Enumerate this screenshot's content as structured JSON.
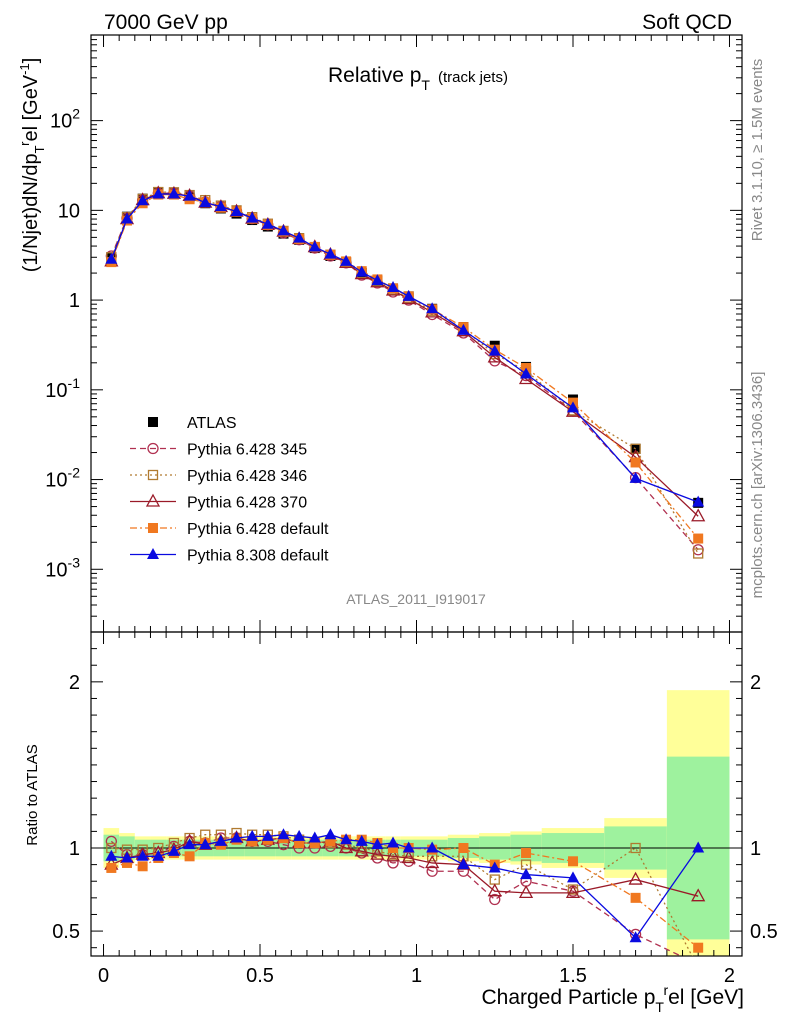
{
  "header": {
    "left": "7000 GeV pp",
    "right": "Soft QCD"
  },
  "side_texts": {
    "top": "Rivet 3.1.10, ≥ 1.5M events",
    "bottom": "mcplots.cern.ch [arXiv:1306.3436]"
  },
  "watermark": "ATLAS_2011_I919017",
  "chart_data": [
    {
      "type": "scatter",
      "title_main": "Relative p",
      "title_sub": "T",
      "title_suffix": "(track jets)",
      "ylabel": "(1/Njet)dN/dp",
      "ylabel_sub": "T",
      "ylabel_sup": "r",
      "ylabel_tail": "el [GeV",
      "ylabel_unit_sup": "-1",
      "ylabel_close": "]",
      "yscale": "log",
      "xlim": [
        -0.04,
        2.04
      ],
      "ylim": [
        0.0002,
        900
      ],
      "y_tick_labels": [
        {
          "v": 0.001,
          "base": "10",
          "exp": "-3"
        },
        {
          "v": 0.01,
          "base": "10",
          "exp": "-2"
        },
        {
          "v": 0.1,
          "base": "10",
          "exp": "-1"
        },
        {
          "v": 1,
          "base": "1",
          "exp": ""
        },
        {
          "v": 10,
          "base": "10",
          "exp": ""
        },
        {
          "v": 100,
          "base": "10",
          "exp": "2"
        }
      ],
      "legend_position": "lower-left",
      "x": [
        0.025,
        0.075,
        0.125,
        0.175,
        0.225,
        0.275,
        0.325,
        0.375,
        0.425,
        0.475,
        0.525,
        0.575,
        0.625,
        0.675,
        0.725,
        0.775,
        0.825,
        0.875,
        0.925,
        0.975,
        1.05,
        1.15,
        1.25,
        1.35,
        1.5,
        1.7,
        1.9
      ],
      "series": [
        {
          "name": "ATLAS",
          "color": "#000000",
          "marker": "square-filled",
          "line": "none",
          "values": [
            3.0,
            8.5,
            13.5,
            16.0,
            15.5,
            14.0,
            12.0,
            10.5,
            9.2,
            7.8,
            6.6,
            5.5,
            4.7,
            3.8,
            3.1,
            2.6,
            2.0,
            1.65,
            1.35,
            1.1,
            0.8,
            0.5,
            0.31,
            0.18,
            0.078,
            0.022,
            0.0055
          ]
        },
        {
          "name": "Pythia 6.428 345",
          "color": "#b03050",
          "marker": "circle-open",
          "line": "dashed",
          "values": [
            3.1,
            8.2,
            13.0,
            15.5,
            15.6,
            14.6,
            12.4,
            11.1,
            9.8,
            8.1,
            6.9,
            5.6,
            4.7,
            3.8,
            3.1,
            2.6,
            1.9,
            1.55,
            1.23,
            1.0,
            0.69,
            0.43,
            0.21,
            0.144,
            0.058,
            0.0105,
            0.00165
          ]
        },
        {
          "name": "Pythia 6.428 346",
          "color": "#b07a30",
          "marker": "square-open",
          "line": "dotted",
          "values": [
            3.0,
            8.4,
            13.4,
            16.0,
            15.9,
            14.8,
            13.0,
            11.3,
            10.0,
            8.4,
            7.1,
            5.9,
            4.9,
            3.9,
            3.2,
            2.65,
            2.0,
            1.62,
            1.3,
            1.05,
            0.76,
            0.475,
            0.25,
            0.163,
            0.059,
            0.022,
            0.0015
          ]
        },
        {
          "name": "Pythia 6.428 370",
          "color": "#9a1a28",
          "marker": "triangle-open",
          "line": "solid",
          "values": [
            2.7,
            8.0,
            13.0,
            15.5,
            15.3,
            14.5,
            12.2,
            10.9,
            9.7,
            8.1,
            6.9,
            5.8,
            4.8,
            3.9,
            3.2,
            2.6,
            1.95,
            1.58,
            1.28,
            1.03,
            0.73,
            0.45,
            0.23,
            0.132,
            0.057,
            0.0178,
            0.0039
          ]
        },
        {
          "name": "Pythia 6.428 default",
          "color": "#f07820",
          "marker": "square-filled",
          "line": "dashdot",
          "values": [
            2.65,
            7.7,
            12.0,
            15.0,
            15.0,
            13.3,
            12.3,
            10.7,
            9.7,
            8.1,
            6.9,
            5.8,
            4.8,
            3.9,
            3.2,
            2.7,
            2.1,
            1.7,
            1.35,
            1.1,
            0.79,
            0.5,
            0.28,
            0.175,
            0.072,
            0.0155,
            0.0022
          ]
        },
        {
          "name": "Pythia 8.308 default",
          "color": "#0a0ae0",
          "marker": "triangle-filled",
          "line": "solid",
          "values": [
            2.85,
            8.0,
            12.8,
            15.2,
            15.2,
            14.4,
            12.2,
            11.0,
            9.7,
            8.2,
            7.0,
            5.9,
            4.9,
            3.9,
            3.25,
            2.7,
            2.05,
            1.65,
            1.38,
            1.1,
            0.8,
            0.46,
            0.27,
            0.15,
            0.063,
            0.0103,
            0.0056
          ]
        }
      ]
    },
    {
      "type": "scatter",
      "ylabel": "Ratio to ATLAS",
      "xlabel": "Charged Particle p",
      "xlabel_sub": "T",
      "xlabel_sup": "r",
      "xlabel_tail": "el [GeV]",
      "xlim": [
        -0.04,
        2.04
      ],
      "ylim": [
        0.35,
        2.3
      ],
      "x_tick_labels": [
        {
          "v": 0,
          "t": "0"
        },
        {
          "v": 0.5,
          "t": "0.5"
        },
        {
          "v": 1,
          "t": "1"
        },
        {
          "v": 1.5,
          "t": "1.5"
        },
        {
          "v": 2,
          "t": "2"
        }
      ],
      "y_tick_labels": [
        {
          "v": 0.5,
          "t": "0.5"
        },
        {
          "v": 1,
          "t": "1"
        },
        {
          "v": 2,
          "t": "2"
        }
      ],
      "bands": {
        "edges": [
          0.0,
          0.05,
          0.1,
          0.15,
          0.2,
          0.25,
          0.3,
          0.35,
          0.4,
          0.45,
          0.5,
          0.55,
          0.6,
          0.65,
          0.7,
          0.75,
          0.8,
          0.85,
          0.9,
          0.95,
          1.0,
          1.1,
          1.2,
          1.3,
          1.4,
          1.6,
          1.8,
          2.0
        ],
        "green_halfwidth": [
          0.08,
          0.07,
          0.05,
          0.05,
          0.05,
          0.05,
          0.05,
          0.05,
          0.05,
          0.05,
          0.05,
          0.05,
          0.05,
          0.05,
          0.05,
          0.05,
          0.05,
          0.05,
          0.05,
          0.05,
          0.05,
          0.06,
          0.07,
          0.08,
          0.09,
          0.13,
          0.55
        ],
        "yellow_halfwidth": [
          0.12,
          0.09,
          0.07,
          0.07,
          0.07,
          0.07,
          0.07,
          0.07,
          0.07,
          0.07,
          0.07,
          0.07,
          0.07,
          0.07,
          0.07,
          0.07,
          0.07,
          0.07,
          0.07,
          0.07,
          0.07,
          0.08,
          0.09,
          0.1,
          0.12,
          0.18,
          0.95
        ],
        "green_color": "#9ef29e",
        "yellow_color": "#ffff99"
      },
      "x": [
        0.025,
        0.075,
        0.125,
        0.175,
        0.225,
        0.275,
        0.325,
        0.375,
        0.425,
        0.475,
        0.525,
        0.575,
        0.625,
        0.675,
        0.725,
        0.775,
        0.825,
        0.875,
        0.925,
        0.975,
        1.05,
        1.15,
        1.25,
        1.35,
        1.5,
        1.7,
        1.9
      ],
      "series": [
        {
          "name": "Pythia 6.428 345",
          "color": "#b03050",
          "marker": "circle-open",
          "line": "dashed",
          "values": [
            1.04,
            0.96,
            0.96,
            0.97,
            1.01,
            1.04,
            1.03,
            1.06,
            1.06,
            1.04,
            1.04,
            1.02,
            1.0,
            1.0,
            1.01,
            1.0,
            0.97,
            0.94,
            0.91,
            0.92,
            0.86,
            0.86,
            0.69,
            0.8,
            0.74,
            0.48,
            0.3
          ]
        },
        {
          "name": "Pythia 6.428 346",
          "color": "#b07a30",
          "marker": "square-open",
          "line": "dotted",
          "values": [
            1.0,
            0.99,
            0.99,
            1.0,
            1.03,
            1.06,
            1.08,
            1.08,
            1.09,
            1.08,
            1.08,
            1.07,
            1.05,
            1.03,
            1.03,
            1.02,
            1.0,
            0.98,
            0.96,
            0.95,
            0.95,
            0.95,
            0.81,
            0.9,
            0.75,
            1.0,
            0.28
          ]
        },
        {
          "name": "Pythia 6.428 370",
          "color": "#9a1a28",
          "marker": "triangle-open",
          "line": "solid",
          "values": [
            0.9,
            0.94,
            0.96,
            0.97,
            0.99,
            1.04,
            1.02,
            1.04,
            1.06,
            1.04,
            1.05,
            1.06,
            1.03,
            1.03,
            1.04,
            1.0,
            0.98,
            0.96,
            0.95,
            0.94,
            0.91,
            0.9,
            0.74,
            0.73,
            0.73,
            0.81,
            0.71
          ]
        },
        {
          "name": "Pythia 6.428 default",
          "color": "#f07820",
          "marker": "square-filled",
          "line": "dashdot",
          "values": [
            0.88,
            0.91,
            0.89,
            0.94,
            0.97,
            0.95,
            1.03,
            1.02,
            1.05,
            1.04,
            1.05,
            1.06,
            1.03,
            1.03,
            1.04,
            1.05,
            1.05,
            1.03,
            1.0,
            1.0,
            0.99,
            1.0,
            0.9,
            0.97,
            0.92,
            0.7,
            0.4
          ]
        },
        {
          "name": "Pythia 8.308 default",
          "color": "#0a0ae0",
          "marker": "triangle-filled",
          "line": "solid",
          "values": [
            0.95,
            0.94,
            0.95,
            0.95,
            0.98,
            1.02,
            1.02,
            1.04,
            1.06,
            1.07,
            1.07,
            1.08,
            1.07,
            1.06,
            1.08,
            1.05,
            1.04,
            1.02,
            1.03,
            1.0,
            1.0,
            0.9,
            0.88,
            0.84,
            0.82,
            0.46,
            1.0
          ]
        }
      ]
    }
  ]
}
